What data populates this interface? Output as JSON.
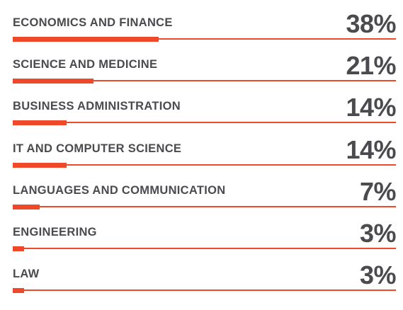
{
  "colors": {
    "accent": "#f0492a",
    "text": "#4a4a4f"
  },
  "chart_data": {
    "type": "bar",
    "orientation": "horizontal",
    "categories": [
      "ECONOMICS AND FINANCE",
      "SCIENCE AND MEDICINE",
      "BUSINESS ADMINISTRATION",
      "IT AND COMPUTER SCIENCE",
      "LANGUAGES AND COMMUNICATION",
      "ENGINEERING",
      "LAW"
    ],
    "values": [
      38,
      21,
      14,
      14,
      7,
      3,
      3
    ],
    "value_labels": [
      "38%",
      "21%",
      "14%",
      "14%",
      "7%",
      "3%",
      "3%"
    ],
    "xlim": [
      0,
      100
    ],
    "grid": false,
    "legend": "none"
  }
}
